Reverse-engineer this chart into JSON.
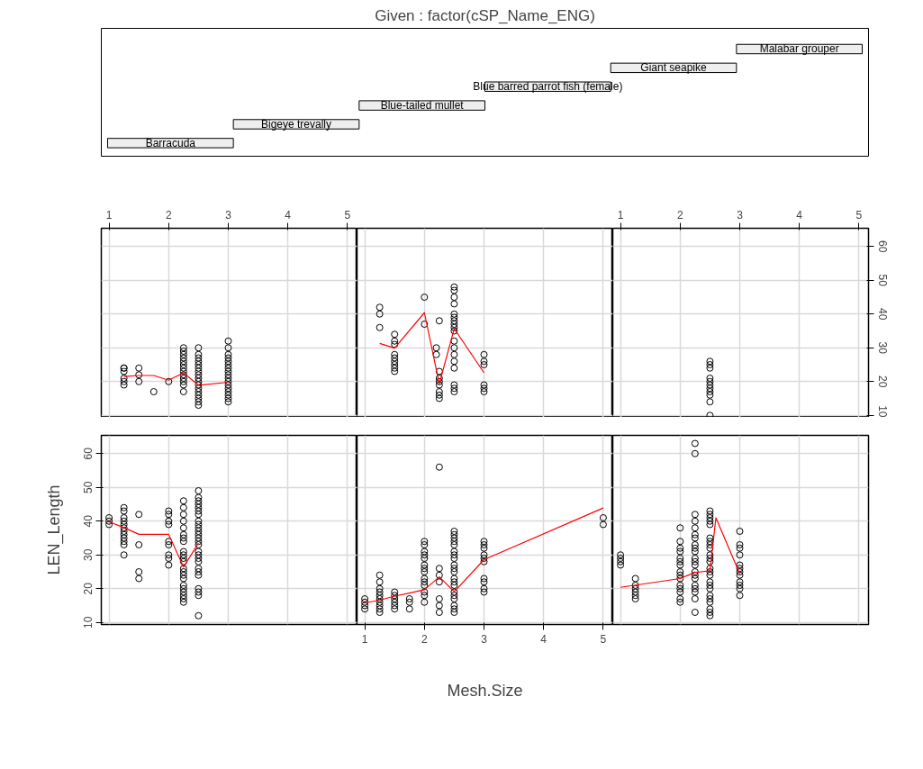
{
  "chart_data": [
    {
      "type": "other",
      "title": "Given : factor(cSP_Name_ENG)",
      "annotations": [
        "Barracuda",
        "Bigeye trevally",
        "Blue-tailed mullet",
        "Blue barred parrot fish (female)",
        "Giant seapike",
        "Malabar grouper"
      ]
    },
    {
      "type": "scatter",
      "xlim": [
        0.87,
        5.16
      ],
      "ylim": [
        9.4,
        65.4
      ],
      "xticks": [
        1,
        2,
        3,
        4,
        5
      ],
      "yticks": [
        10,
        20,
        30,
        40,
        50,
        60
      ],
      "grid": true,
      "tick_labels": "x",
      "series": [
        {
          "type": "scatter",
          "marker": "circle",
          "color": "#000000",
          "x": [
            1.25,
            1.25,
            1.25,
            1.25,
            1.25,
            1.25,
            1.5,
            1.5,
            1.5,
            1.75,
            2,
            2.25,
            2.25,
            2.25,
            2.25,
            2.25,
            2.25,
            2.25,
            2.25,
            2.25,
            2.25,
            2.25,
            2.25,
            2.25,
            2.5,
            2.5,
            2.5,
            2.5,
            2.5,
            2.5,
            2.5,
            2.5,
            2.5,
            2.5,
            2.5,
            2.5,
            2.5,
            2.5,
            2.5,
            2.5,
            2.5,
            3,
            3,
            3,
            3,
            3,
            3,
            3,
            3,
            3,
            3,
            3,
            3,
            3,
            3,
            3,
            3,
            3
          ],
          "values": [
            24,
            24,
            23,
            21,
            20,
            19,
            24,
            22,
            20,
            17,
            20,
            30,
            29,
            28,
            27,
            26,
            25,
            24,
            23,
            22,
            21,
            20,
            19,
            17,
            30,
            28,
            27,
            26,
            25,
            24,
            23,
            22,
            21,
            20,
            19,
            18,
            17,
            16,
            15,
            14,
            13,
            32,
            30,
            28,
            27,
            26,
            25,
            24,
            23,
            22,
            21,
            20,
            19,
            18,
            17,
            16,
            15,
            14
          ]
        },
        {
          "type": "line",
          "line_style": "solid",
          "color": "#ff0000",
          "x": [
            1.25,
            1.5,
            1.75,
            2,
            2.25,
            2.5,
            3
          ],
          "values": [
            21.5,
            21.8,
            21.8,
            20.4,
            22.6,
            18.9,
            19.8
          ]
        }
      ]
    },
    {
      "type": "scatter",
      "xlim": [
        0.87,
        5.16
      ],
      "ylim": [
        9.4,
        65.4
      ],
      "xticks": [
        1,
        2,
        3,
        4,
        5
      ],
      "yticks": [
        10,
        20,
        30,
        40,
        50,
        60
      ],
      "grid": true,
      "tick_labels": false,
      "series": [
        {
          "type": "scatter",
          "marker": "circle",
          "color": "#000000",
          "x": [
            1.25,
            1.25,
            1.25,
            1.5,
            1.5,
            1.5,
            1.5,
            1.5,
            1.5,
            1.5,
            1.5,
            1.5,
            2,
            2,
            2.2,
            2.2,
            2.25,
            2.25,
            2.25,
            2.25,
            2.25,
            2.25,
            2.25,
            2.25,
            2.5,
            2.5,
            2.5,
            2.5,
            2.5,
            2.5,
            2.5,
            2.5,
            2.5,
            2.5,
            2.5,
            2.5,
            2.5,
            2.5,
            2.5,
            2.5,
            2.5,
            2.5,
            3,
            3,
            3,
            3,
            3,
            3
          ],
          "values": [
            42,
            40,
            36,
            34,
            32,
            31,
            28,
            27,
            26,
            25,
            24,
            23,
            45,
            37,
            30,
            28,
            38,
            23,
            21,
            20,
            19,
            17,
            16,
            15,
            48,
            47,
            45,
            43,
            40,
            39,
            38,
            37,
            36,
            35,
            32,
            30,
            28,
            26,
            24,
            19,
            18,
            17,
            28,
            26,
            25,
            19,
            18,
            17
          ]
        },
        {
          "type": "line",
          "line_style": "solid",
          "color": "#ff0000",
          "x": [
            1.25,
            1.5,
            2,
            2.25,
            2.5,
            3
          ],
          "values": [
            31.3,
            29.9,
            40.4,
            19.3,
            35.7,
            22.6
          ]
        }
      ]
    },
    {
      "type": "scatter",
      "xlim": [
        0.87,
        5.16
      ],
      "ylim": [
        9.4,
        65.4
      ],
      "xticks": [
        1,
        2,
        3,
        4,
        5
      ],
      "yticks": [
        10,
        20,
        30,
        40,
        50,
        60
      ],
      "grid": true,
      "series": [
        {
          "type": "scatter",
          "marker": "circle",
          "color": "#000000",
          "x": [
            2.5,
            2.5,
            2.5,
            2.5,
            2.5,
            2.5,
            2.5,
            2.5,
            2.5,
            2.5,
            2.5
          ],
          "values": [
            26,
            25,
            24,
            21,
            20,
            19,
            18,
            17,
            16,
            14,
            10
          ]
        }
      ]
    },
    {
      "type": "scatter",
      "ylabel": "LEN_Length",
      "xlim": [
        0.87,
        5.16
      ],
      "ylim": [
        9.4,
        65.4
      ],
      "xticks": [
        1,
        2,
        3,
        4,
        5
      ],
      "yticks": [
        10,
        20,
        30,
        40,
        50,
        60
      ],
      "grid": true,
      "tick_labels": "y",
      "series": [
        {
          "type": "scatter",
          "marker": "circle",
          "color": "#000000",
          "x": [
            1,
            1,
            1,
            1.25,
            1.25,
            1.25,
            1.25,
            1.25,
            1.25,
            1.25,
            1.25,
            1.25,
            1.25,
            1.25,
            1.25,
            1.5,
            1.5,
            1.5,
            1.5,
            2,
            2,
            2,
            2,
            2,
            2,
            2,
            2,
            2,
            2.25,
            2.25,
            2.25,
            2.25,
            2.25,
            2.25,
            2.25,
            2.25,
            2.25,
            2.25,
            2.25,
            2.25,
            2.25,
            2.25,
            2.25,
            2.25,
            2.25,
            2.25,
            2.25,
            2.25,
            2.25,
            2.25,
            2.5,
            2.5,
            2.5,
            2.5,
            2.5,
            2.5,
            2.5,
            2.5,
            2.5,
            2.5,
            2.5,
            2.5,
            2.5,
            2.5,
            2.5,
            2.5,
            2.5,
            2.5,
            2.5,
            2.5,
            2.5,
            2.5,
            2.5,
            2.5,
            2.5,
            2.5
          ],
          "values": [
            41,
            40,
            39,
            44,
            43,
            41,
            40,
            39,
            38,
            37,
            36,
            35,
            34,
            33,
            30,
            42,
            33,
            25,
            23,
            43,
            42,
            40,
            39,
            34,
            33,
            30,
            29,
            27,
            46,
            44,
            42,
            40,
            38,
            36,
            35,
            34,
            31,
            30,
            29,
            28,
            26,
            25,
            24,
            23,
            21,
            20,
            19,
            18,
            17,
            16,
            49,
            47,
            46,
            45,
            44,
            43,
            42,
            40,
            39,
            38,
            37,
            36,
            35,
            34,
            33,
            31,
            30,
            29,
            28,
            26,
            25,
            24,
            20,
            19,
            18,
            12
          ]
        },
        {
          "type": "line",
          "line_style": "solid",
          "color": "#ff0000",
          "x": [
            1,
            1.25,
            1.5,
            2,
            2.25,
            2.5
          ],
          "values": [
            39.8,
            38.1,
            36.1,
            36.1,
            26.4,
            33.5
          ]
        }
      ]
    },
    {
      "type": "scatter",
      "xlabel": "Mesh.Size",
      "xlim": [
        0.87,
        5.16
      ],
      "ylim": [
        9.4,
        65.4
      ],
      "xticks": [
        1,
        2,
        3,
        4,
        5
      ],
      "yticks": [
        10,
        20,
        30,
        40,
        50,
        60
      ],
      "grid": true,
      "tick_labels": "x",
      "series": [
        {
          "type": "scatter",
          "marker": "circle",
          "color": "#000000",
          "x": [
            1,
            1,
            1,
            1,
            1.25,
            1.25,
            1.25,
            1.25,
            1.25,
            1.25,
            1.25,
            1.25,
            1.25,
            1.25,
            1.5,
            1.5,
            1.5,
            1.5,
            1.5,
            1.5,
            1.75,
            1.75,
            1.75,
            2,
            2,
            2,
            2,
            2,
            2,
            2,
            2,
            2,
            2,
            2,
            2,
            2,
            2,
            2.25,
            2.25,
            2.25,
            2.25,
            2.25,
            2.25,
            2.25,
            2.5,
            2.5,
            2.5,
            2.5,
            2.5,
            2.5,
            2.5,
            2.5,
            2.5,
            2.5,
            2.5,
            2.5,
            2.5,
            2.5,
            2.5,
            2.5,
            2.5,
            2.5,
            2.5,
            2.5,
            3,
            3,
            3,
            3,
            3,
            3,
            3,
            3,
            3,
            3,
            5,
            5
          ],
          "values": [
            17,
            16,
            15,
            14,
            24,
            22,
            20,
            19,
            18,
            17,
            16,
            15,
            14,
            13,
            19,
            18,
            17,
            16,
            15,
            14,
            17,
            16,
            14,
            34,
            33,
            31,
            30,
            29,
            27,
            26,
            25,
            23,
            22,
            21,
            19,
            18,
            16,
            56,
            26,
            24,
            22,
            17,
            15,
            13,
            37,
            36,
            35,
            34,
            33,
            31,
            30,
            29,
            27,
            26,
            25,
            23,
            22,
            21,
            19,
            18,
            17,
            15,
            14,
            13,
            34,
            33,
            32,
            30,
            29,
            28,
            23,
            22,
            20,
            19,
            41,
            39
          ]
        },
        {
          "type": "line",
          "line_style": "solid",
          "color": "#ff0000",
          "x": [
            1,
            1.25,
            1.5,
            1.75,
            2,
            2.25,
            2.5,
            3,
            5
          ],
          "values": [
            15.8,
            16.6,
            17.8,
            18.7,
            19.7,
            23.5,
            19.1,
            28.6,
            43.9
          ]
        }
      ]
    },
    {
      "type": "scatter",
      "xlim": [
        0.87,
        5.16
      ],
      "ylim": [
        9.4,
        65.4
      ],
      "xticks": [
        1,
        2,
        3,
        4,
        5
      ],
      "yticks": [
        10,
        20,
        30,
        40,
        50,
        60
      ],
      "grid": true,
      "tick_labels": false,
      "series": [
        {
          "type": "scatter",
          "marker": "circle",
          "color": "#000000",
          "x": [
            1,
            1,
            1,
            1,
            1.25,
            1.25,
            1.25,
            1.25,
            1.25,
            1.25,
            2,
            2,
            2,
            2,
            2,
            2,
            2,
            2,
            2,
            2,
            2,
            2,
            2,
            2,
            2,
            2.25,
            2.25,
            2.25,
            2.25,
            2.25,
            2.25,
            2.25,
            2.25,
            2.25,
            2.25,
            2.25,
            2.25,
            2.25,
            2.25,
            2.25,
            2.25,
            2.25,
            2.25,
            2.25,
            2.25,
            2.25,
            2.5,
            2.5,
            2.5,
            2.5,
            2.5,
            2.5,
            2.5,
            2.5,
            2.5,
            2.5,
            2.5,
            2.5,
            2.5,
            2.5,
            2.5,
            2.5,
            2.5,
            2.5,
            2.5,
            2.5,
            2.5,
            2.5,
            2.5,
            2.5,
            3,
            3,
            3,
            3,
            3,
            3,
            3,
            3,
            3,
            3,
            3,
            3
          ],
          "values": [
            30,
            29,
            28,
            27,
            23,
            21,
            20,
            19,
            18,
            17,
            38,
            34,
            32,
            31,
            29,
            28,
            27,
            25,
            24,
            23,
            21,
            20,
            19,
            17,
            16,
            63,
            60,
            42,
            40,
            38,
            36,
            35,
            33,
            32,
            31,
            29,
            28,
            27,
            25,
            24,
            23,
            21,
            20,
            19,
            17,
            13,
            43,
            42,
            41,
            40,
            39,
            35,
            34,
            33,
            32,
            30,
            29,
            28,
            26,
            25,
            24,
            22,
            21,
            20,
            18,
            17,
            16,
            14,
            13,
            12,
            37,
            33,
            32,
            30,
            27,
            26,
            25,
            24,
            22,
            21,
            20,
            18
          ]
        },
        {
          "type": "line",
          "line_style": "solid",
          "color": "#ff0000",
          "x": [
            1,
            2,
            2.25,
            2.5,
            2.6,
            3
          ],
          "values": [
            20.4,
            23,
            24.8,
            25.3,
            41,
            24.4
          ]
        }
      ]
    }
  ]
}
